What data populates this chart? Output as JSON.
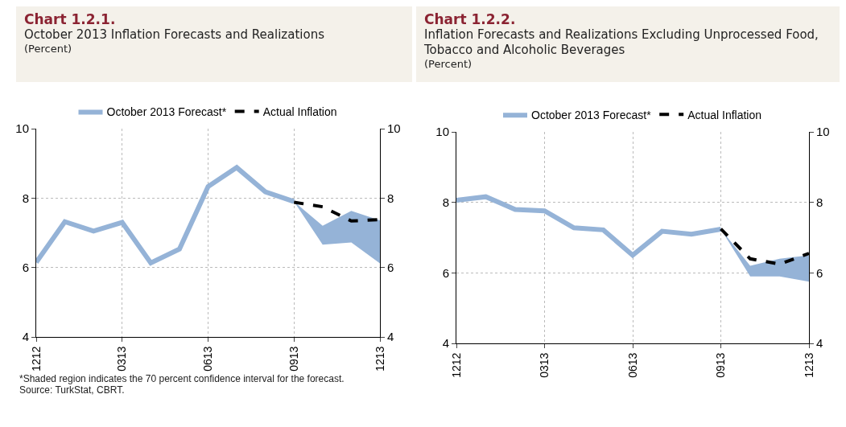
{
  "chart_data": [
    {
      "type": "line",
      "title": "Chart 1.2.1.",
      "subtitle": "October 2013 Inflation Forecasts and Realizations",
      "ylabel": "(Percent)",
      "categories": [
        "1212",
        null,
        null,
        "0313",
        null,
        null,
        "0613",
        null,
        null,
        "0913",
        null,
        null,
        "1213"
      ],
      "series": [
        {
          "name": "October 2013 Forecast*",
          "color": "#95b3d7",
          "values": [
            6.15,
            7.32,
            7.05,
            7.3,
            6.13,
            6.53,
            8.33,
            8.88,
            8.18,
            7.9,
            null,
            null,
            null
          ],
          "lower": [
            null,
            null,
            null,
            null,
            null,
            null,
            null,
            null,
            null,
            7.9,
            6.66,
            6.72,
            6.12
          ],
          "upper": [
            null,
            null,
            null,
            null,
            null,
            null,
            null,
            null,
            null,
            7.9,
            7.2,
            7.63,
            7.36
          ]
        },
        {
          "name": "Actual Inflation",
          "color": "#000000",
          "line_style": "dashed",
          "values": [
            null,
            null,
            null,
            null,
            null,
            null,
            null,
            null,
            null,
            7.88,
            7.75,
            7.34,
            7.38
          ]
        }
      ],
      "ylim": [
        4,
        10
      ],
      "yticks": [
        4,
        6,
        8,
        10
      ],
      "y2lim": [
        4,
        10
      ],
      "y2ticks": [
        4,
        6,
        8,
        10
      ],
      "grid": true,
      "legend": "top",
      "marker": "none",
      "annotations": [
        "*Shaded region indicates the 70 percent confidence interval for the forecast.",
        "Source: TurkStat, CBRT."
      ]
    },
    {
      "type": "line",
      "title": "Chart 1.2.2.",
      "subtitle": "Inflation Forecasts and Realizations Excluding Unprocessed Food, Tobacco and Alcoholic Beverages",
      "ylabel": "(Percent)",
      "categories": [
        "1212",
        null,
        null,
        "0313",
        null,
        null,
        "0613",
        null,
        null,
        "0913",
        null,
        null,
        "1213"
      ],
      "series": [
        {
          "name": "October 2013 Forecast*",
          "color": "#95b3d7",
          "values": [
            8.06,
            8.16,
            7.8,
            7.76,
            7.28,
            7.22,
            6.5,
            7.18,
            7.1,
            7.24,
            null,
            null,
            null
          ],
          "lower": [
            null,
            null,
            null,
            null,
            null,
            null,
            null,
            null,
            null,
            7.24,
            5.9,
            5.9,
            5.75
          ],
          "upper": [
            null,
            null,
            null,
            null,
            null,
            null,
            null,
            null,
            null,
            7.24,
            6.2,
            6.4,
            6.5
          ]
        },
        {
          "name": "Actual Inflation",
          "color": "#000000",
          "line_style": "dashed",
          "values": [
            null,
            null,
            null,
            null,
            null,
            null,
            null,
            null,
            null,
            7.25,
            6.4,
            6.25,
            6.55
          ]
        }
      ],
      "ylim": [
        4,
        10
      ],
      "yticks": [
        4,
        6,
        8,
        10
      ],
      "y2lim": [
        4,
        10
      ],
      "y2ticks": [
        4,
        6,
        8,
        10
      ],
      "grid": true,
      "legend": "top",
      "marker": "none"
    }
  ]
}
